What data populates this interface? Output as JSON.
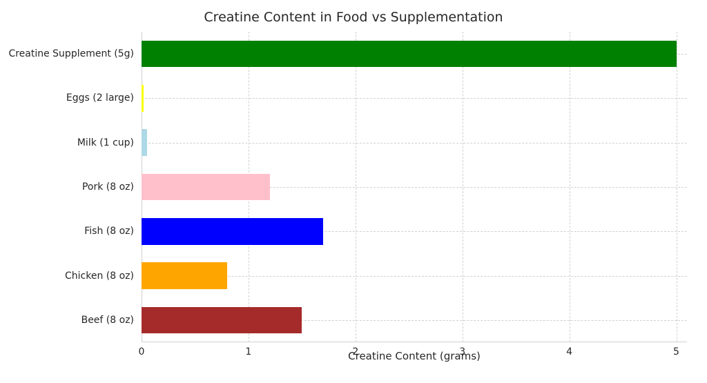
{
  "chart": {
    "type": "bar-horizontal",
    "title": "Creatine Content in Food vs Supplementation",
    "title_fontsize": 19,
    "xlabel": "Creatine Content (grams)",
    "label_fontsize": 15,
    "tick_fontsize": 14,
    "background_color": "#ffffff",
    "grid_color": "#d0d0d0",
    "grid_dash": true,
    "xlim": [
      0,
      5.1
    ],
    "xticks": [
      0,
      1,
      2,
      3,
      4,
      5
    ],
    "categories": [
      "Beef (8 oz)",
      "Chicken (8 oz)",
      "Fish (8 oz)",
      "Pork (8 oz)",
      "Milk (1 cup)",
      "Eggs (2 large)",
      "Creatine Supplement (5g)"
    ],
    "values": [
      1.5,
      0.8,
      1.7,
      1.2,
      0.05,
      0.02,
      5.0
    ],
    "bar_colors": [
      "#a52a2a",
      "#ffa500",
      "#0000ff",
      "#ffc0cb",
      "#add8e6",
      "#ffff00",
      "#008000"
    ],
    "bar_height_ratio": 0.6,
    "text_color": "#262626"
  }
}
